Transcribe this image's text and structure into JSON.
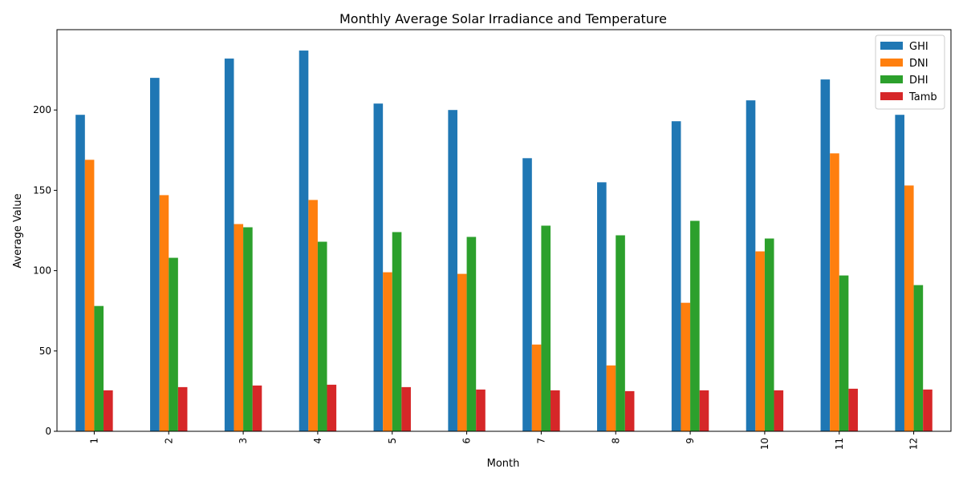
{
  "chart_data": {
    "type": "bar",
    "title": "Monthly Average Solar Irradiance and Temperature",
    "xlabel": "Month",
    "ylabel": "Average Value",
    "categories": [
      "1",
      "2",
      "3",
      "4",
      "5",
      "6",
      "7",
      "8",
      "9",
      "10",
      "11",
      "12"
    ],
    "ylim": [
      0,
      250
    ],
    "yticks": [
      0,
      50,
      100,
      150,
      200
    ],
    "legend_position": "top-right",
    "grid": false,
    "series": [
      {
        "name": "GHI",
        "color": "#1f77b4",
        "values": [
          197,
          220,
          232,
          237,
          204,
          200,
          170,
          155,
          193,
          206,
          219,
          197
        ]
      },
      {
        "name": "DNI",
        "color": "#ff7f0e",
        "values": [
          169,
          147,
          129,
          144,
          99,
          98,
          54,
          41,
          80,
          112,
          173,
          153
        ]
      },
      {
        "name": "DHI",
        "color": "#2ca02c",
        "values": [
          78,
          108,
          127,
          118,
          124,
          121,
          128,
          122,
          131,
          120,
          97,
          91
        ]
      },
      {
        "name": "Tamb",
        "color": "#d62728",
        "values": [
          25.5,
          27.5,
          28.5,
          29,
          27.5,
          26,
          25.5,
          25,
          25.5,
          25.5,
          26.5,
          26
        ]
      }
    ]
  }
}
